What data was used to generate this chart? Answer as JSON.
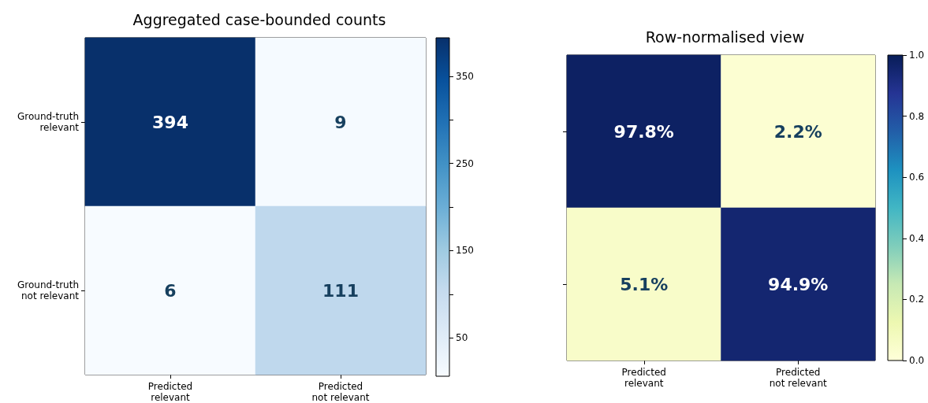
{
  "chart_data": [
    {
      "type": "heatmap",
      "title": "Aggregated case-bounded counts",
      "categories": [
        "Predicted\nrelevant",
        "Predicted\nnot relevant"
      ],
      "y_categories": [
        "Ground-truth\nrelevant",
        "Ground-truth\nnot relevant"
      ],
      "cells": [
        [
          394,
          9
        ],
        [
          6,
          111
        ]
      ],
      "clim": [
        6,
        394
      ],
      "cticks": [
        50,
        {
          "value": 100,
          "label": null
        },
        150,
        {
          "value": 200,
          "label": null
        },
        250,
        {
          "value": 300,
          "label": null
        },
        350
      ],
      "data_labels": true
    },
    {
      "type": "heatmap",
      "title": "Row-normalised view",
      "categories": [
        "Predicted\nrelevant",
        "Predicted\nnot relevant"
      ],
      "y_categories": [
        null,
        null
      ],
      "cells": [
        [
          0.978,
          0.022
        ],
        [
          0.051,
          0.949
        ]
      ],
      "cell_labels": [
        [
          "97.8%",
          "2.2%"
        ],
        [
          "5.1%",
          "94.9%"
        ]
      ],
      "clim": [
        0,
        1
      ],
      "cticks": [
        {
          "value": 0,
          "label": "0.0"
        },
        0.2,
        0.4,
        0.6,
        0.8,
        {
          "value": 1,
          "label": "1.0"
        }
      ]
    }
  ]
}
